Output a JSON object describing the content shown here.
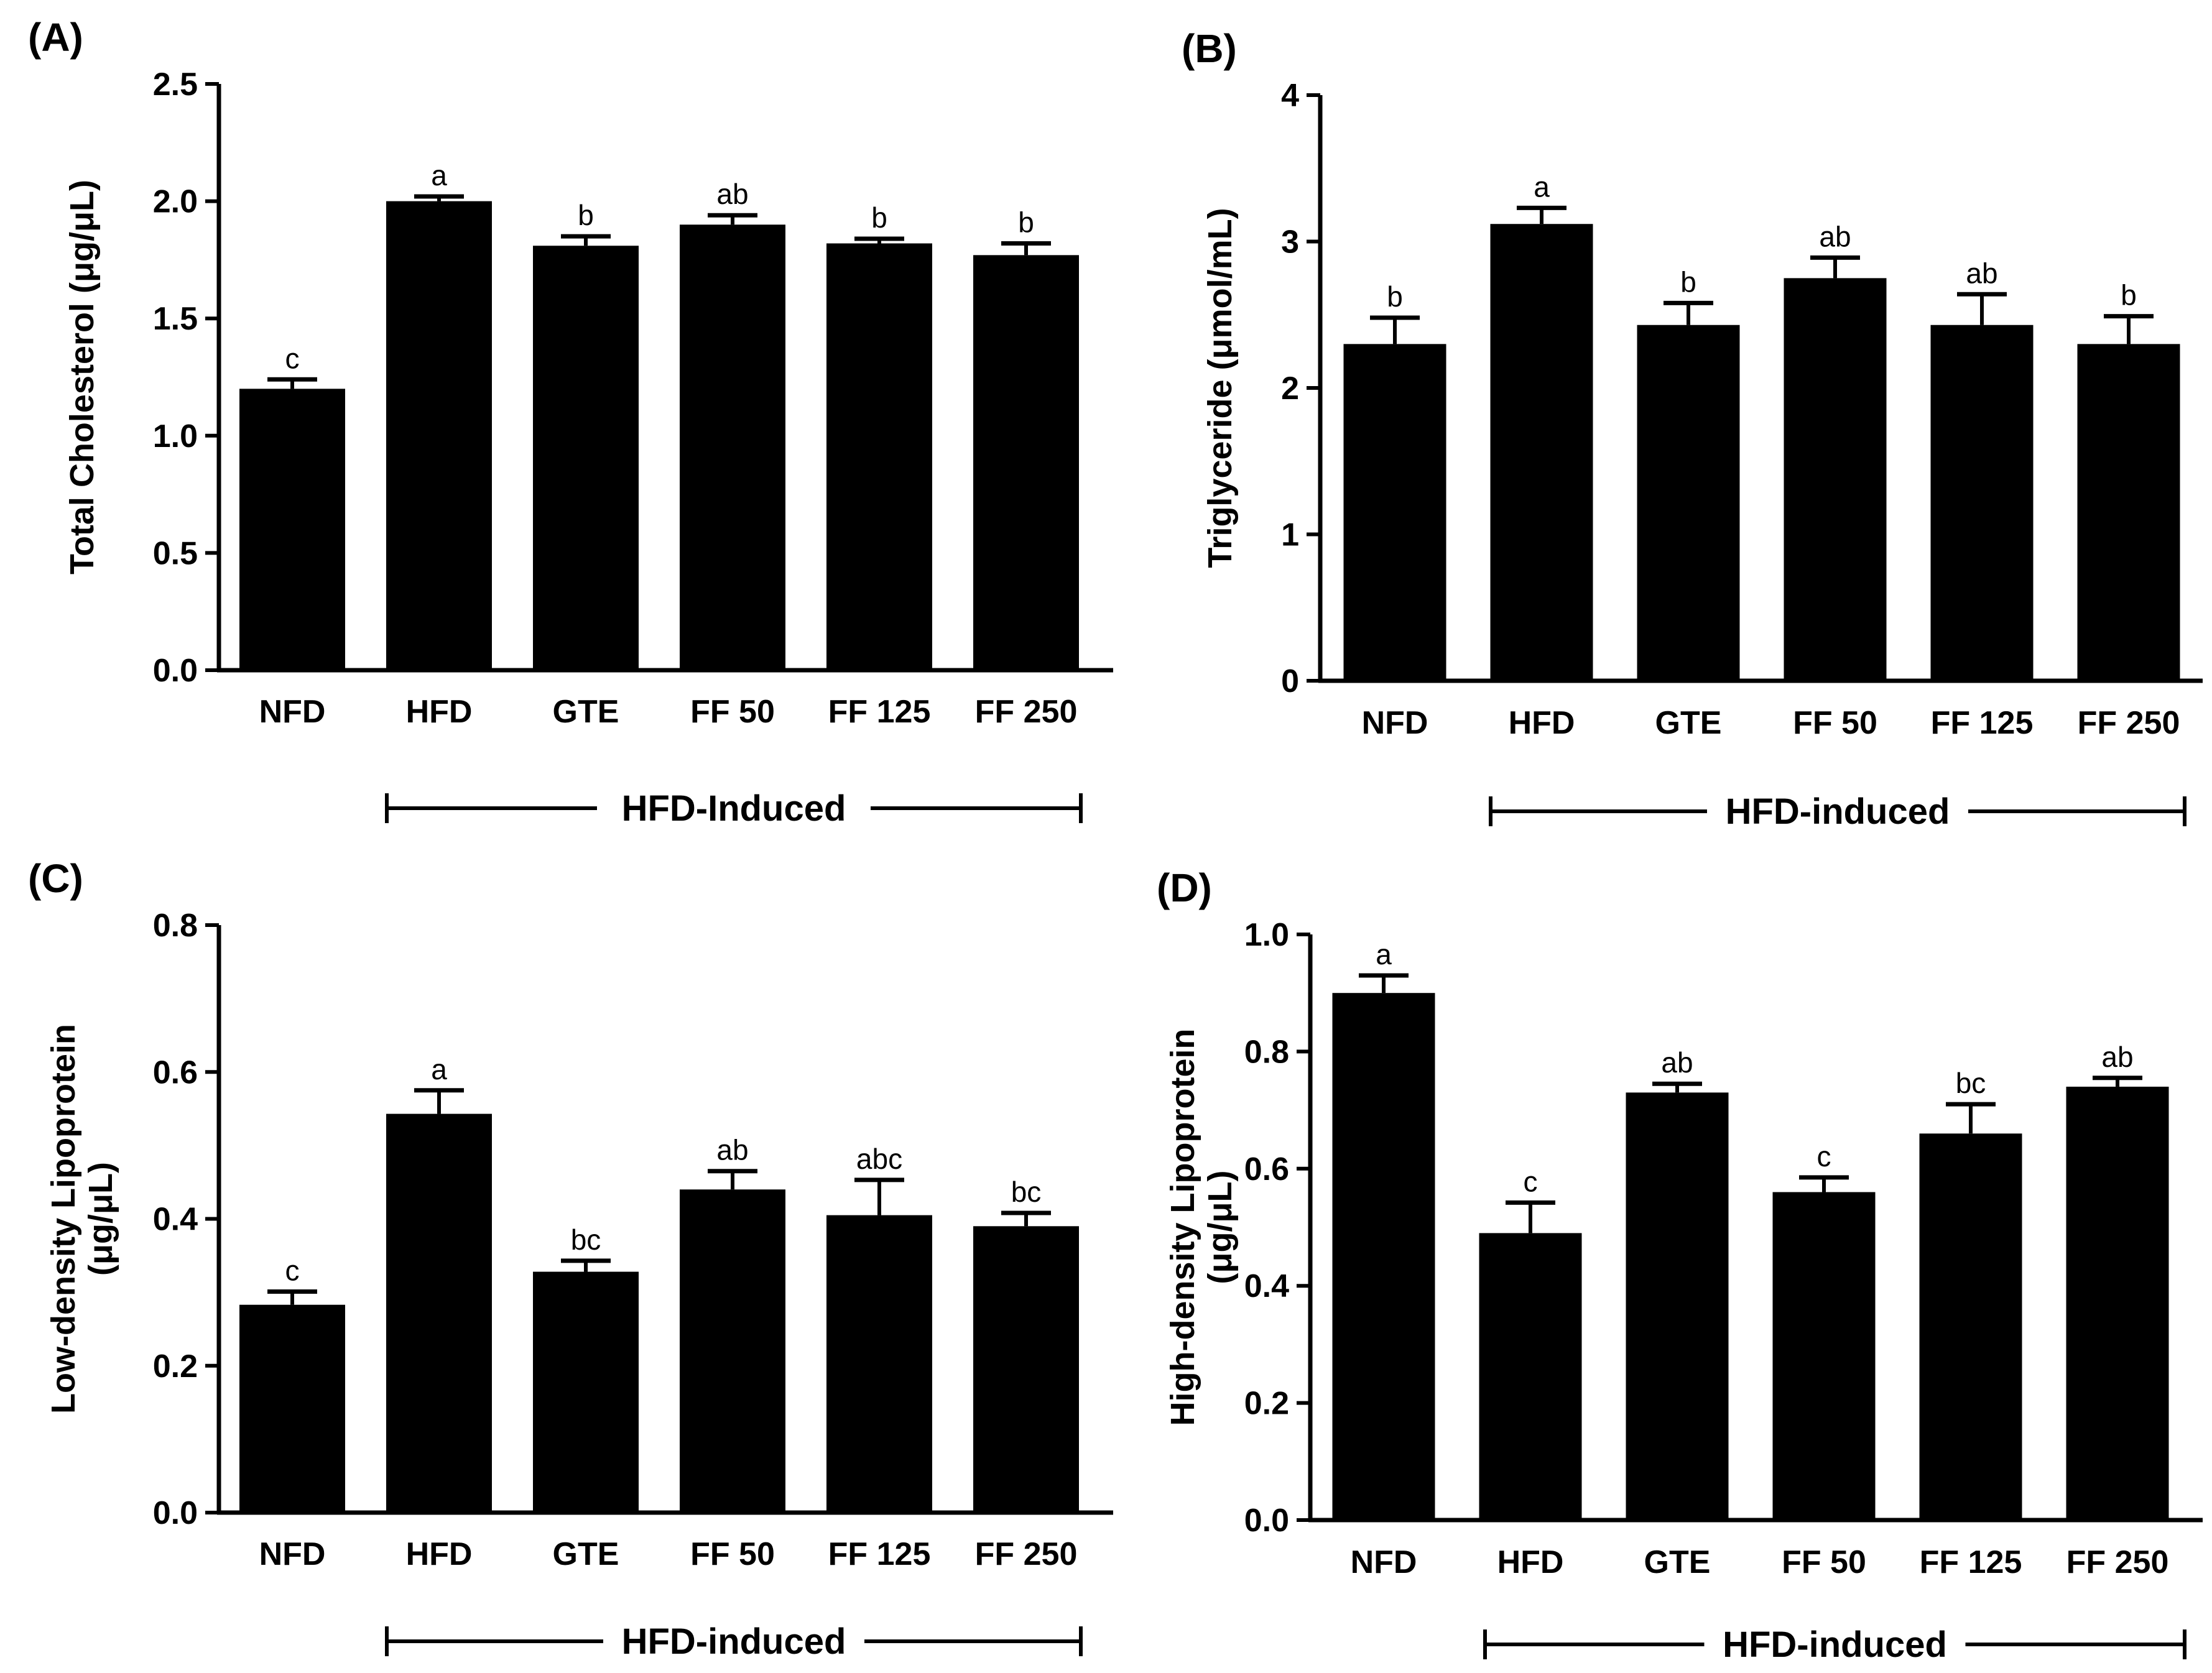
{
  "chart_data": [
    {
      "panel": "(A)",
      "type": "bar",
      "categories": [
        "NFD",
        "HFD",
        "GTE",
        "FF 50",
        "FF 125",
        "FF 250"
      ],
      "values": [
        1.2,
        2.0,
        1.81,
        1.9,
        1.82,
        1.77
      ],
      "errors": [
        0.04,
        0.02,
        0.04,
        0.04,
        0.02,
        0.05
      ],
      "labels": [
        "c",
        "a",
        "b",
        "ab",
        "b",
        "b"
      ],
      "ylabel_lines": [
        "Total Cholesterol (μg/μL)"
      ],
      "ylim": [
        0,
        2.5
      ],
      "yticks": [
        "0.0",
        "0.5",
        "1.0",
        "1.5",
        "2.0",
        "2.5"
      ],
      "group_label": "HFD-Induced",
      "bar_color": "#000000"
    },
    {
      "panel": "(B)",
      "type": "bar",
      "categories": [
        "NFD",
        "HFD",
        "GTE",
        "FF 50",
        "FF 125",
        "FF 250"
      ],
      "values": [
        2.3,
        3.12,
        2.43,
        2.75,
        2.43,
        2.3
      ],
      "errors": [
        0.18,
        0.11,
        0.15,
        0.14,
        0.21,
        0.19
      ],
      "labels": [
        "b",
        "a",
        "b",
        "ab",
        "ab",
        "b"
      ],
      "ylabel_lines": [
        "Triglyceride (μmol/mL)"
      ],
      "ylim": [
        0,
        4
      ],
      "yticks": [
        "0",
        "1",
        "2",
        "3",
        "4"
      ],
      "group_label": "HFD-induced",
      "bar_color": "#000000"
    },
    {
      "panel": "(C)",
      "type": "bar",
      "categories": [
        "NFD",
        "HFD",
        "GTE",
        "FF 50",
        "FF 125",
        "FF 250"
      ],
      "values": [
        0.283,
        0.543,
        0.328,
        0.44,
        0.405,
        0.39
      ],
      "errors": [
        0.018,
        0.032,
        0.015,
        0.025,
        0.048,
        0.018
      ],
      "labels": [
        "c",
        "a",
        "bc",
        "ab",
        "abc",
        "bc"
      ],
      "ylabel_lines": [
        "Low-density Lipoprotein",
        "(μg/μL)"
      ],
      "ylim": [
        0,
        0.8
      ],
      "yticks": [
        "0.0",
        "0.2",
        "0.4",
        "0.6",
        "0.8"
      ],
      "group_label": "HFD-induced",
      "bar_color": "#000000"
    },
    {
      "panel": "(D)",
      "type": "bar",
      "categories": [
        "NFD",
        "HFD",
        "GTE",
        "FF 50",
        "FF 125",
        "FF 250"
      ],
      "values": [
        0.9,
        0.49,
        0.73,
        0.56,
        0.66,
        0.74
      ],
      "errors": [
        0.03,
        0.052,
        0.015,
        0.025,
        0.05,
        0.015
      ],
      "labels": [
        "a",
        "c",
        "ab",
        "c",
        "bc",
        "ab"
      ],
      "ylabel_lines": [
        "High-density Lipoprotein",
        "(μg/μL)"
      ],
      "ylim": [
        0,
        1.0
      ],
      "yticks": [
        "0.0",
        "0.2",
        "0.4",
        "0.6",
        "0.8",
        "1.0"
      ],
      "group_label": "HFD-induced",
      "bar_color": "#000000"
    }
  ]
}
